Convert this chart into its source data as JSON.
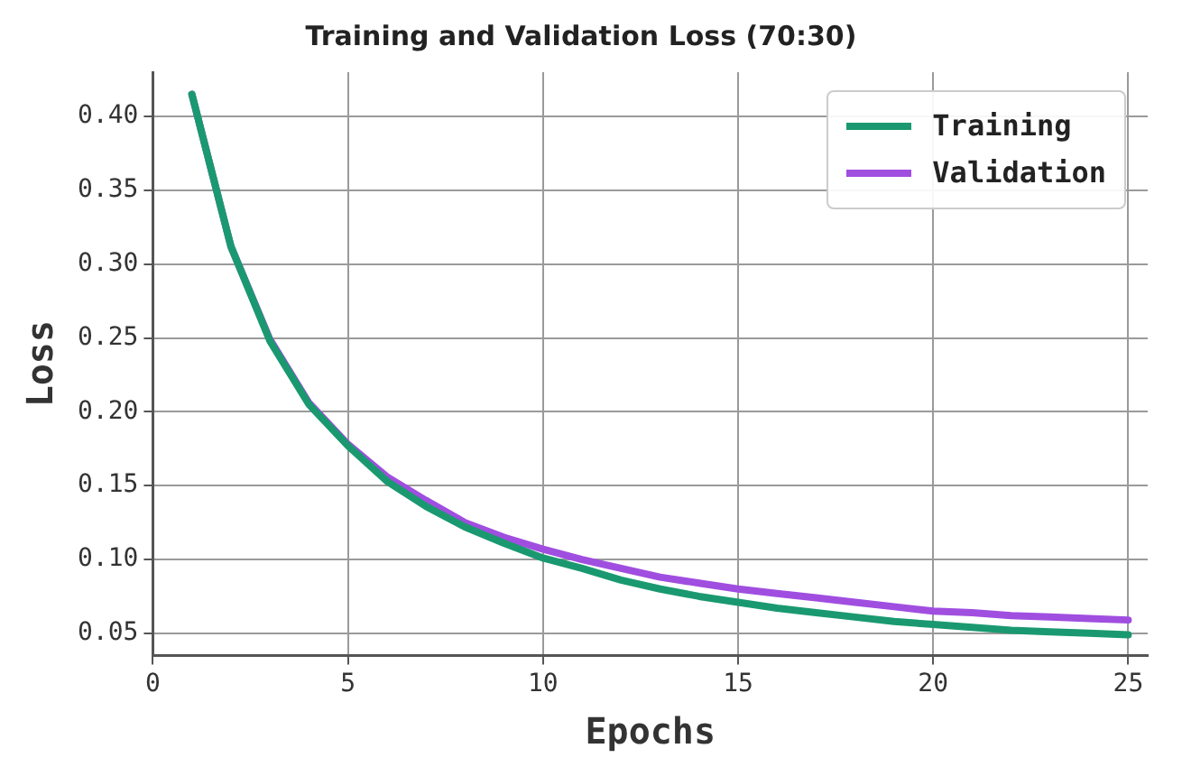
{
  "chart_data": {
    "type": "line",
    "title": "Training and Validation Loss (70:30)",
    "xlabel": "Epochs",
    "ylabel": "Loss",
    "x": [
      1,
      2,
      3,
      4,
      5,
      6,
      7,
      8,
      9,
      10,
      11,
      12,
      13,
      14,
      15,
      16,
      17,
      18,
      19,
      20,
      21,
      22,
      23,
      24,
      25
    ],
    "series": [
      {
        "name": "Training",
        "color": "#1a9970",
        "values": [
          0.415,
          0.312,
          0.248,
          0.205,
          0.177,
          0.153,
          0.136,
          0.122,
          0.111,
          0.101,
          0.094,
          0.086,
          0.08,
          0.075,
          0.071,
          0.067,
          0.064,
          0.061,
          0.058,
          0.056,
          0.054,
          0.052,
          0.051,
          0.05,
          0.049
        ]
      },
      {
        "name": "Validation",
        "color": "#a04ee0",
        "values": [
          0.415,
          0.312,
          0.249,
          0.206,
          0.178,
          0.156,
          0.14,
          0.125,
          0.115,
          0.107,
          0.1,
          0.094,
          0.088,
          0.084,
          0.08,
          0.077,
          0.074,
          0.071,
          0.068,
          0.065,
          0.064,
          0.062,
          0.061,
          0.06,
          0.059
        ]
      }
    ],
    "xlim": [
      0,
      25.5
    ],
    "xticks": [
      0,
      5,
      10,
      15,
      20,
      25
    ],
    "ylim": [
      0.035,
      0.43
    ],
    "yticks": [
      {
        "value": 0.05,
        "label": "0.05"
      },
      {
        "value": 0.1,
        "label": "0.10"
      },
      {
        "value": 0.15,
        "label": "0.15"
      },
      {
        "value": 0.2,
        "label": "0.20"
      },
      {
        "value": 0.25,
        "label": "0.25"
      },
      {
        "value": 0.3,
        "label": "0.30"
      },
      {
        "value": 0.35,
        "label": "0.35"
      },
      {
        "value": 0.4,
        "label": "0.40"
      }
    ],
    "grid": true,
    "legend": "top right",
    "marker": "none",
    "line_style": "solid"
  }
}
